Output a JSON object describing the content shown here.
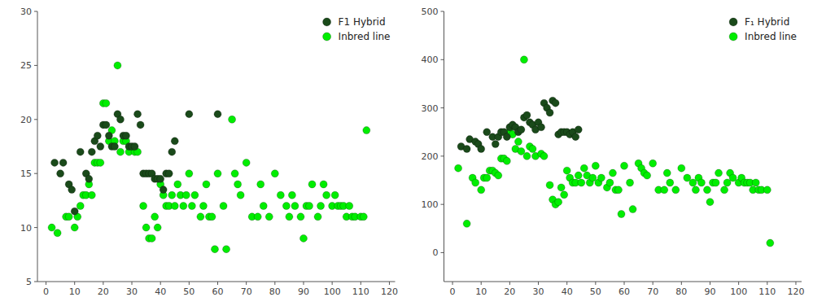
{
  "chart_data": [
    {
      "type": "scatter",
      "marker": "circle",
      "legend": "upper right",
      "grid": false,
      "xlim": [
        -3,
        122
      ],
      "ylim": [
        5,
        30
      ],
      "xticks": [
        0,
        10,
        20,
        30,
        40,
        50,
        60,
        70,
        80,
        90,
        100,
        110,
        120
      ],
      "yticks": [
        5,
        10,
        15,
        20,
        25,
        30
      ],
      "series": [
        {
          "name": "F1 Hybrid",
          "color": "#1a4a1a",
          "x": [
            3,
            5,
            6,
            8,
            9,
            10,
            12,
            14,
            15,
            16,
            17,
            18,
            19,
            20,
            21,
            22,
            23,
            24,
            25,
            26,
            27,
            28,
            29,
            30,
            31,
            32,
            33,
            34,
            35,
            36,
            37,
            38,
            39,
            40,
            41,
            42,
            43,
            44,
            45,
            50,
            60
          ],
          "values": [
            16.0,
            15.0,
            16.0,
            14.0,
            13.5,
            11.5,
            17.0,
            15.0,
            14.5,
            17.0,
            18.0,
            18.5,
            17.5,
            19.5,
            19.5,
            18.5,
            17.5,
            17.5,
            20.5,
            20.0,
            18.5,
            18.5,
            17.5,
            17.5,
            17.5,
            20.5,
            19.5,
            15.0,
            15.0,
            15.0,
            15.0,
            14.5,
            14.5,
            14.5,
            13.5,
            15.0,
            15.0,
            17.0,
            18.0,
            20.5,
            20.5
          ]
        },
        {
          "name": "Inbred line",
          "color": "#00ee00",
          "x": [
            2,
            4,
            7,
            8,
            10,
            11,
            12,
            13,
            14,
            15,
            16,
            17,
            18,
            19,
            20,
            21,
            22,
            23,
            24,
            25,
            26,
            27,
            28,
            29,
            31,
            32,
            34,
            35,
            36,
            37,
            38,
            39,
            40,
            41,
            42,
            43,
            44,
            45,
            46,
            47,
            48,
            49,
            50,
            51,
            52,
            54,
            55,
            56,
            57,
            58,
            59,
            60,
            62,
            63,
            65,
            66,
            67,
            68,
            70,
            72,
            74,
            75,
            76,
            78,
            80,
            82,
            84,
            85,
            86,
            87,
            89,
            90,
            91,
            92,
            93,
            95,
            96,
            97,
            98,
            100,
            101,
            102,
            103,
            104,
            105,
            106,
            107,
            108,
            110,
            111,
            112
          ],
          "values": [
            10.0,
            9.5,
            11.0,
            11.0,
            10.0,
            11.0,
            12.0,
            13.0,
            13.0,
            14.0,
            13.0,
            16.0,
            16.0,
            16.0,
            21.5,
            21.5,
            18.0,
            19.0,
            18.0,
            25.0,
            17.0,
            18.0,
            18.0,
            17.0,
            17.0,
            17.0,
            12.0,
            10.0,
            9.0,
            9.0,
            11.0,
            10.0,
            14.0,
            13.0,
            12.0,
            12.0,
            13.0,
            12.0,
            14.0,
            13.0,
            12.0,
            13.0,
            15.0,
            12.0,
            13.0,
            11.0,
            12.0,
            14.0,
            11.0,
            11.0,
            8.0,
            15.0,
            12.0,
            8.0,
            20.0,
            15.0,
            14.0,
            13.0,
            16.0,
            11.0,
            11.0,
            14.0,
            12.0,
            11.0,
            15.0,
            13.0,
            12.0,
            11.0,
            13.0,
            12.0,
            11.0,
            9.0,
            12.0,
            12.0,
            14.0,
            11.0,
            12.0,
            14.0,
            13.0,
            12.0,
            13.0,
            12.0,
            12.0,
            12.0,
            11.0,
            12.0,
            11.0,
            11.0,
            11.0,
            11.0,
            19.0
          ]
        }
      ]
    },
    {
      "type": "scatter",
      "marker": "circle",
      "legend": "upper right",
      "grid": false,
      "xlim": [
        -3,
        122
      ],
      "ylim": [
        -60,
        500
      ],
      "xticks": [
        0,
        10,
        20,
        30,
        40,
        50,
        60,
        70,
        80,
        90,
        100,
        110,
        120
      ],
      "yticks": [
        0,
        100,
        200,
        300,
        400,
        500
      ],
      "series": [
        {
          "name": "F₁ Hybrid",
          "color": "#1a4a1a",
          "x": [
            3,
            5,
            6,
            8,
            9,
            10,
            12,
            14,
            15,
            16,
            17,
            18,
            19,
            20,
            21,
            22,
            23,
            24,
            25,
            26,
            27,
            28,
            29,
            30,
            31,
            32,
            33,
            34,
            35,
            36,
            37,
            38,
            39,
            40,
            41,
            42,
            43,
            44
          ],
          "values": [
            220,
            215,
            235,
            230,
            225,
            215,
            250,
            240,
            225,
            240,
            250,
            250,
            240,
            260,
            265,
            260,
            250,
            255,
            280,
            285,
            270,
            265,
            255,
            270,
            260,
            310,
            300,
            290,
            315,
            310,
            245,
            250,
            250,
            250,
            245,
            250,
            240,
            255
          ]
        },
        {
          "name": "Inbred line",
          "color": "#00ee00",
          "x": [
            2,
            5,
            7,
            8,
            10,
            11,
            12,
            13,
            14,
            15,
            16,
            17,
            18,
            19,
            20,
            21,
            22,
            23,
            24,
            25,
            26,
            27,
            28,
            29,
            31,
            32,
            34,
            35,
            36,
            37,
            38,
            39,
            40,
            41,
            42,
            43,
            44,
            45,
            46,
            47,
            48,
            49,
            50,
            51,
            52,
            54,
            55,
            56,
            57,
            58,
            59,
            60,
            62,
            63,
            65,
            66,
            67,
            68,
            70,
            72,
            74,
            75,
            76,
            78,
            80,
            82,
            84,
            85,
            86,
            87,
            89,
            90,
            91,
            92,
            93,
            95,
            96,
            97,
            98,
            100,
            101,
            102,
            103,
            104,
            105,
            106,
            107,
            108,
            110,
            111
          ],
          "values": [
            175,
            60,
            155,
            145,
            130,
            155,
            155,
            170,
            170,
            165,
            160,
            195,
            195,
            190,
            250,
            245,
            215,
            230,
            210,
            400,
            200,
            220,
            215,
            200,
            205,
            200,
            140,
            110,
            100,
            105,
            135,
            120,
            170,
            155,
            145,
            145,
            160,
            145,
            175,
            160,
            145,
            155,
            180,
            145,
            155,
            135,
            145,
            165,
            130,
            130,
            80,
            180,
            145,
            90,
            185,
            175,
            165,
            160,
            185,
            130,
            130,
            165,
            145,
            130,
            175,
            155,
            145,
            130,
            155,
            145,
            130,
            105,
            145,
            145,
            165,
            130,
            145,
            165,
            155,
            145,
            155,
            145,
            145,
            145,
            130,
            145,
            130,
            130,
            130,
            20
          ]
        }
      ]
    }
  ]
}
